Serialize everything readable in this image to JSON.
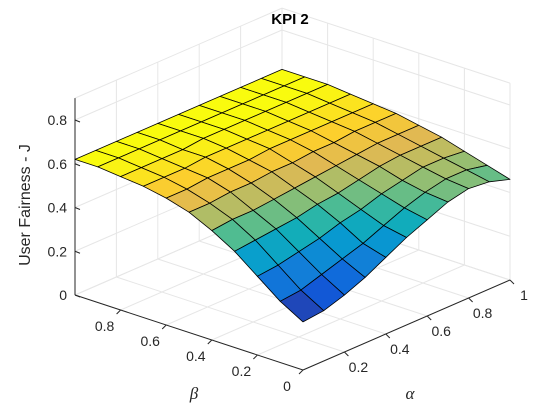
{
  "chart_data": {
    "type": "surface",
    "title": "KPI 2",
    "zlabel": "User Fairness - J",
    "xlabel": "α",
    "ylabel": "β",
    "xlim": [
      0,
      1
    ],
    "ylim": [
      0,
      1
    ],
    "zlim": [
      0,
      0.9
    ],
    "x_ticks": [
      "0.2",
      "0.4",
      "0.6",
      "0.8",
      "1"
    ],
    "y_ticks": [
      "0",
      "0.2",
      "0.4",
      "0.6",
      "0.8"
    ],
    "z_ticks": [
      "0",
      "0.2",
      "0.4",
      "0.6",
      "0.8"
    ],
    "grid": true,
    "colormap": "parula",
    "alpha": [
      0,
      0.1,
      0.2,
      0.3,
      0.4,
      0.5,
      0.6,
      0.7,
      0.8,
      0.9,
      1.0
    ],
    "beta": [
      0,
      0.1,
      0.2,
      0.3,
      0.4,
      0.5,
      0.6,
      0.7,
      0.8,
      0.9,
      1.0
    ],
    "J": [
      [
        0.22,
        0.23,
        0.26,
        0.3,
        0.35,
        0.4,
        0.44,
        0.48,
        0.5,
        0.49,
        0.46
      ],
      [
        0.28,
        0.29,
        0.32,
        0.35,
        0.38,
        0.42,
        0.46,
        0.49,
        0.51,
        0.51,
        0.49
      ],
      [
        0.36,
        0.37,
        0.39,
        0.41,
        0.44,
        0.46,
        0.49,
        0.51,
        0.53,
        0.53,
        0.52
      ],
      [
        0.44,
        0.45,
        0.46,
        0.47,
        0.49,
        0.5,
        0.52,
        0.54,
        0.55,
        0.55,
        0.55
      ],
      [
        0.5,
        0.51,
        0.51,
        0.52,
        0.53,
        0.54,
        0.55,
        0.56,
        0.57,
        0.57,
        0.57
      ],
      [
        0.55,
        0.55,
        0.56,
        0.56,
        0.57,
        0.57,
        0.58,
        0.58,
        0.59,
        0.59,
        0.59
      ],
      [
        0.58,
        0.58,
        0.59,
        0.59,
        0.59,
        0.6,
        0.6,
        0.6,
        0.6,
        0.6,
        0.6
      ],
      [
        0.6,
        0.6,
        0.6,
        0.61,
        0.61,
        0.61,
        0.61,
        0.61,
        0.61,
        0.61,
        0.61
      ],
      [
        0.61,
        0.61,
        0.61,
        0.61,
        0.62,
        0.62,
        0.62,
        0.62,
        0.62,
        0.62,
        0.62
      ],
      [
        0.62,
        0.62,
        0.62,
        0.62,
        0.62,
        0.62,
        0.62,
        0.62,
        0.62,
        0.62,
        0.62
      ],
      [
        0.62,
        0.62,
        0.62,
        0.62,
        0.62,
        0.62,
        0.62,
        0.62,
        0.62,
        0.62,
        0.62
      ]
    ],
    "colors": {
      "grid": "#e6e6e6",
      "axis": "#262626",
      "edge": "#000000"
    }
  }
}
